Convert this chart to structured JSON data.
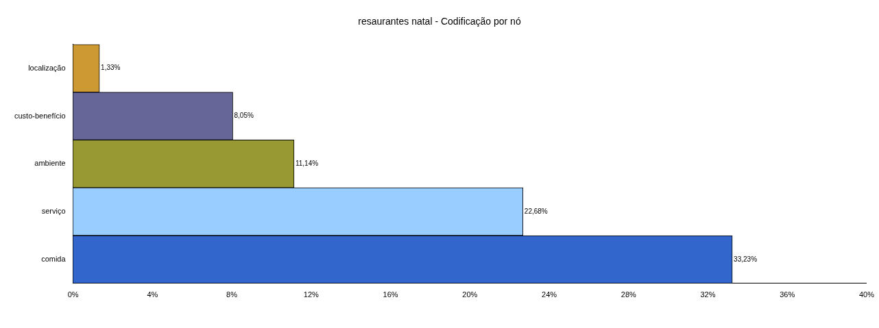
{
  "chart_data": {
    "type": "bar",
    "orientation": "horizontal",
    "title": "resaurantes natal - Codificação por nó",
    "categories": [
      "localização",
      "custo-benefício",
      "ambiente",
      "serviço",
      "comida"
    ],
    "values": [
      1.33,
      8.05,
      11.14,
      22.68,
      33.23
    ],
    "colors": [
      "#cc9933",
      "#666699",
      "#999933",
      "#99ccff",
      "#3366cc"
    ],
    "value_labels": [
      "1,33%",
      "8,05%",
      "11,14%",
      "22,68%",
      "33,23%"
    ],
    "xlim": [
      0,
      40
    ],
    "xticks": [
      {
        "value": 0,
        "label": "0%"
      },
      {
        "value": 4,
        "label": "4%"
      },
      {
        "value": 8,
        "label": "8%"
      },
      {
        "value": 12,
        "label": "12%"
      },
      {
        "value": 16,
        "label": "16%"
      },
      {
        "value": 20,
        "label": "20%"
      },
      {
        "value": 24,
        "label": "24%"
      },
      {
        "value": 28,
        "label": "28%"
      },
      {
        "value": 32,
        "label": "32%"
      },
      {
        "value": 36,
        "label": "36%"
      },
      {
        "value": 40,
        "label": "40%"
      }
    ],
    "grid": false
  }
}
